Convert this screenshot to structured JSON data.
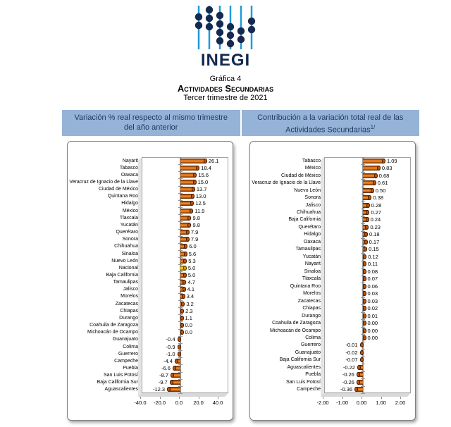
{
  "logo": {
    "text": "INEGI",
    "line_color": "#1E9BD7",
    "dot_color": "#16294F",
    "text_color": "#14294F"
  },
  "title": {
    "grafica": "Gráfica 4",
    "main": "Actividades Secundarias",
    "subtitle": "Tercer trimestre de 2021"
  },
  "headers": {
    "bg_color": "#95B3D7",
    "text_color": "#1F3864",
    "left_line1": "Variación % real respecto al mismo trimestre",
    "left_line2": "del año anterior",
    "right_line1": "Contribución a la variación total real de las",
    "right_line2": "Actividades Secundarias",
    "right_sup": "1/"
  },
  "chart_data": [
    {
      "type": "bar",
      "orientation": "horizontal",
      "title": "Variación % real respecto al mismo trimestre del año anterior",
      "categories": [
        "Nayarit",
        "Tabasco",
        "Oaxaca",
        "Veracruz de Ignacio de la Llave",
        "Ciudad de México",
        "Quintana Roo",
        "Hidalgo",
        "México",
        "Tlaxcala",
        "Yucatán",
        "Querétaro",
        "Sonora",
        "Chihuahua",
        "Sinaloa",
        "Nuevo León",
        "Nacional",
        "Baja California",
        "Tamaulipas",
        "Jalisco",
        "Morelos",
        "Zacatecas",
        "Chiapas",
        "Durango",
        "Coahuila de Zaragoza",
        "Michoacán de Ocampo",
        "Guanajuato",
        "Colima",
        "Guerrero",
        "Campeche",
        "Puebla",
        "San Luis Potosí",
        "Baja California Sur",
        "Aguascalientes"
      ],
      "values": [
        26.1,
        18.4,
        15.6,
        15.0,
        13.7,
        13.0,
        12.5,
        11.9,
        9.8,
        9.8,
        7.9,
        7.9,
        6.0,
        5.6,
        5.3,
        5.0,
        5.0,
        4.7,
        4.1,
        3.4,
        3.2,
        2.3,
        1.1,
        0.0,
        0.0,
        -0.4,
        -0.9,
        -1.0,
        -4.4,
        -6.6,
        -8.7,
        -9.7,
        -12.3
      ],
      "value_labels": [
        "26.1",
        "18.4",
        "15.6",
        "15.0",
        "13.7",
        "13.0",
        "12.5",
        "11.9",
        "9.8",
        "9.8",
        "7.9",
        "7.9",
        "6.0",
        "5.6",
        "5.3",
        "5.0",
        "5.0",
        "4.7",
        "4.1",
        "3.4",
        "3.2",
        "2.3",
        "1.1",
        "0.0",
        "0.0",
        "-0.4",
        "-0.9",
        "-1.0",
        "-4.4",
        "-6.6",
        "-8.7",
        "-9.7",
        "-12.3"
      ],
      "highlight_category": "Nacional",
      "bar_color": "#C55A11",
      "highlight_color": "#FFC000",
      "xlim": [
        -40,
        40
      ],
      "xticks": [
        "-40.0",
        "-20.0",
        "0.0",
        "20.0",
        "40.0"
      ],
      "grid": false,
      "legend": false
    },
    {
      "type": "bar",
      "orientation": "horizontal",
      "title": "Contribución a la variación total real de las Actividades Secundarias",
      "categories": [
        "Tabasco",
        "México",
        "Ciudad de México",
        "Veracruz de Ignacio de la Llave",
        "Nuevo León",
        "Sonora",
        "Jalisco",
        "Chihuahua",
        "Baja California",
        "Querétaro",
        "Hidalgo",
        "Oaxaca",
        "Tamaulipas",
        "Yucatán",
        "Nayarit",
        "Sinaloa",
        "Tlaxcala",
        "Quintana Roo",
        "Morelos",
        "Zacatecas",
        "Chiapas",
        "Durango",
        "Coahuila de Zaragoza",
        "Michoacán de Ocampo",
        "Colima",
        "Guerrero",
        "Guanajuato",
        "Baja California Sur",
        "Aguascalientes",
        "Puebla",
        "San Luis Potosí",
        "Campeche"
      ],
      "values": [
        1.09,
        0.83,
        0.68,
        0.61,
        0.5,
        0.38,
        0.28,
        0.27,
        0.24,
        0.23,
        0.18,
        0.17,
        0.15,
        0.12,
        0.11,
        0.08,
        0.07,
        0.06,
        0.03,
        0.03,
        0.02,
        0.01,
        0.0,
        0.0,
        0.0,
        -0.01,
        -0.02,
        -0.07,
        -0.22,
        -0.26,
        -0.26,
        -0.36
      ],
      "value_labels": [
        "1.09",
        "0.83",
        "0.68",
        "0.61",
        "0.50",
        "0.38",
        "0.28",
        "0.27",
        "0.24",
        "0.23",
        "0.18",
        "0.17",
        "0.15",
        "0.12",
        "0.11",
        "0.08",
        "0.07",
        "0.06",
        "0.03",
        "0.03",
        "0.02",
        "0.01",
        "0.00",
        "0.00",
        "0.00",
        "-0.01",
        "-0.02",
        "-0.07",
        "-0.22",
        "-0.26",
        "-0.26",
        "-0.36"
      ],
      "highlight_category": null,
      "bar_color": "#C55A11",
      "highlight_color": "#FFC000",
      "xlim": [
        -2,
        2
      ],
      "xticks": [
        "-2.00",
        "-1.00",
        "0.00",
        "1.00",
        "2.00"
      ],
      "grid": false,
      "legend": false
    }
  ]
}
